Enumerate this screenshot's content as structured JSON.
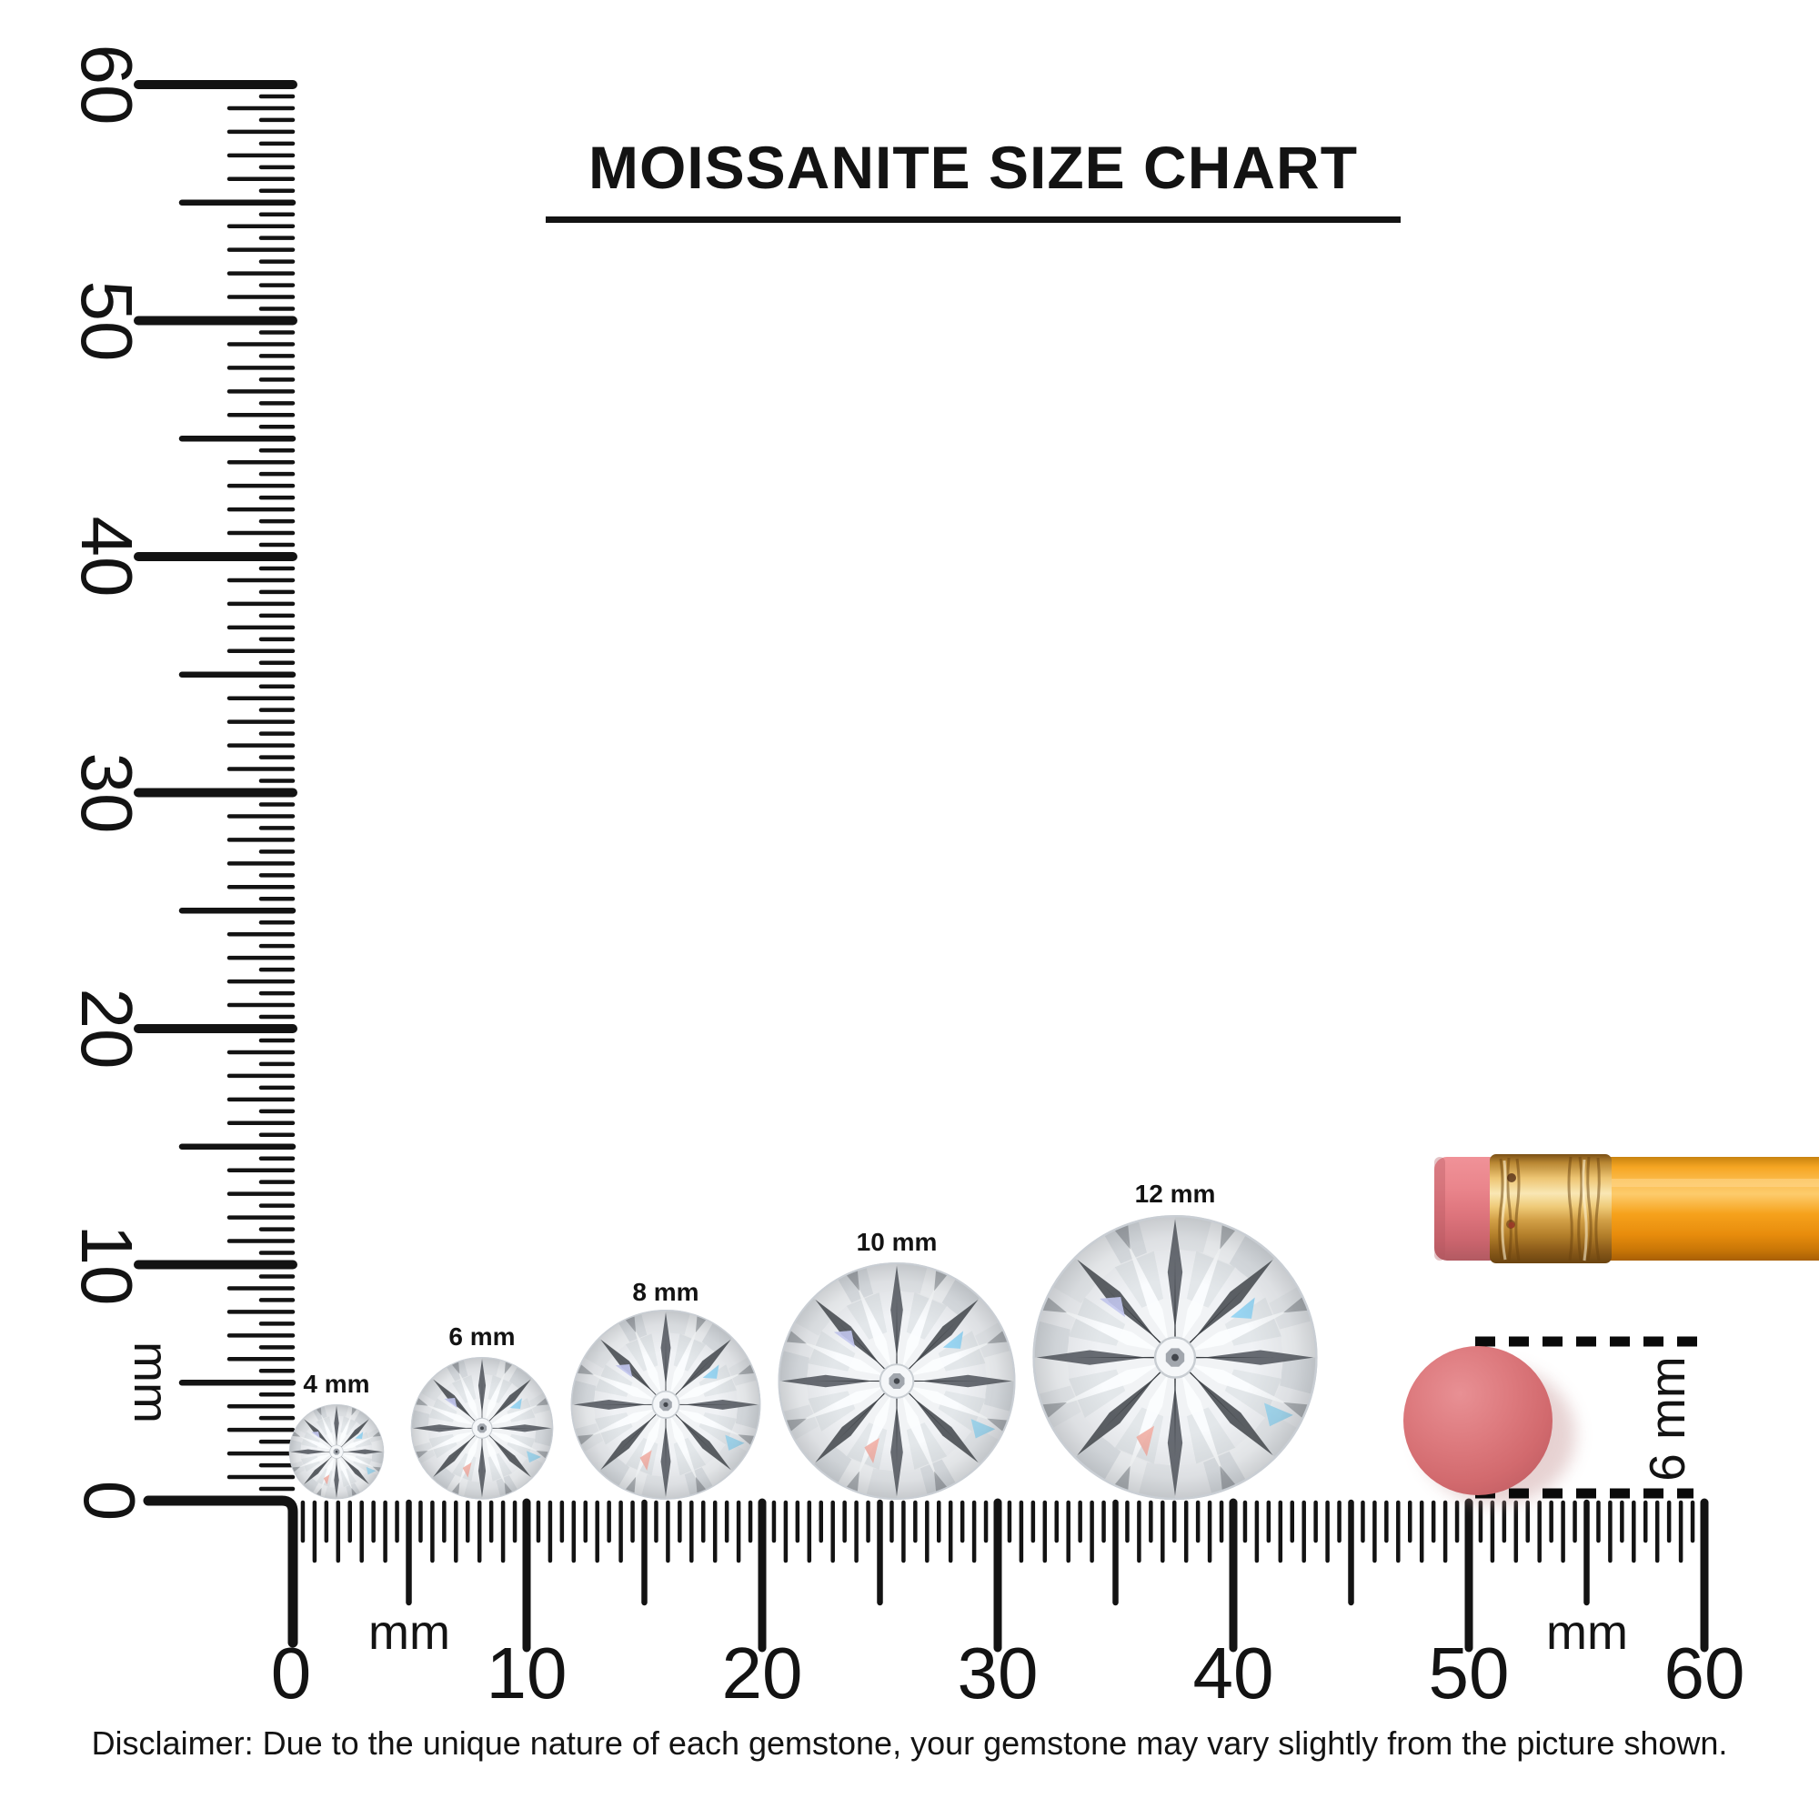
{
  "title": "MOISSANITE SIZE CHART",
  "disclaimer": "Disclaimer: Due to the unique nature of each gemstone, your gemstone may vary slightly from the picture shown.",
  "rulers": {
    "unit": "mm",
    "vertical": {
      "min_mm": 0,
      "max_mm": 60,
      "tick_step_mm": 0.5,
      "labels": [
        "60",
        "50",
        "40",
        "30",
        "20",
        "10",
        "0"
      ],
      "unit_label": "mm"
    },
    "horizontal": {
      "min_mm": 0,
      "max_mm": 60,
      "tick_step_mm": 0.5,
      "labels": [
        "0",
        "10",
        "20",
        "30",
        "40",
        "50",
        "60"
      ],
      "unit_label_left": "mm",
      "unit_label_right": "mm"
    }
  },
  "gems": [
    {
      "label": "4 mm",
      "size_mm": 4
    },
    {
      "label": "6 mm",
      "size_mm": 6
    },
    {
      "label": "8 mm",
      "size_mm": 8
    },
    {
      "label": "10 mm",
      "size_mm": 10
    },
    {
      "label": "12 mm",
      "size_mm": 12
    }
  ],
  "eraser_measure": {
    "label": "6 mm",
    "size_mm": 6
  },
  "colors": {
    "ink": "#131313",
    "pencil_body": "#F79E16",
    "pencil_ferrule_light": "#F9E7B4",
    "pencil_ferrule_dark": "#6B4410",
    "pencil_eraser": "#E2838A",
    "eraser_dot": "#D26A6E",
    "gem_dark_facet": "#50545A",
    "gem_light_facet": "#F4F6F8",
    "gem_glint_blue": "#8FD2F2",
    "gem_glint_pink": "#F2AFA5"
  }
}
